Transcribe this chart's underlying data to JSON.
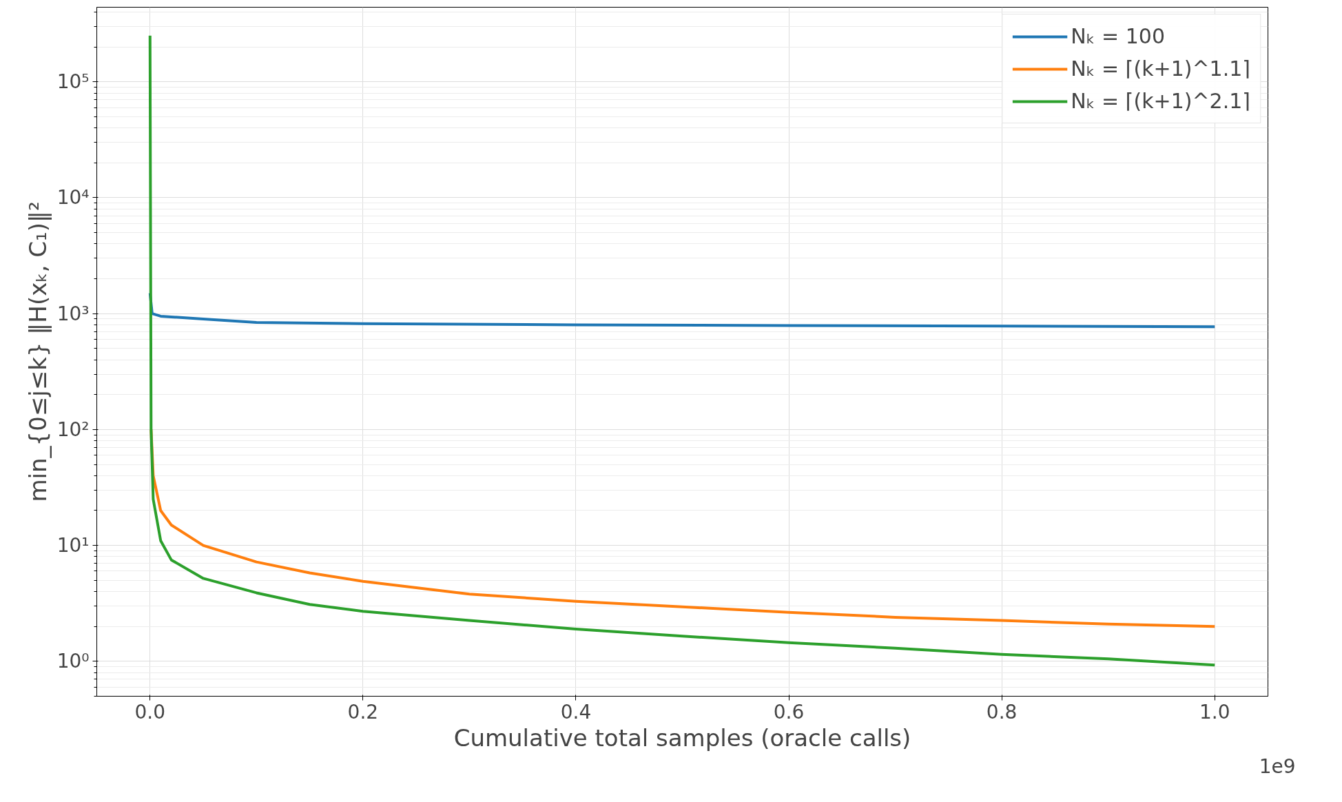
{
  "chart_data": {
    "type": "line",
    "xlabel": "Cumulative total samples (oracle calls)",
    "ylabel": "min_{0≤j≤k} ‖H(xₖ, C₁)‖²",
    "log": "y",
    "grid": true,
    "legend": "top right",
    "line_style": "solid",
    "xlim": [
      -0.05,
      1.05
    ],
    "xticks": [
      {
        "value": 0,
        "label": "0.0"
      },
      0.2,
      0.4,
      0.6,
      0.8,
      {
        "value": 1,
        "label": "1.0"
      }
    ],
    "ylim": [
      0.5,
      440000
    ],
    "yticks": [
      {
        "value": 1,
        "label": "10⁰"
      },
      {
        "value": 10,
        "label": "10¹"
      },
      {
        "value": 100,
        "label": "10²"
      },
      {
        "value": 1000,
        "label": "10³"
      },
      {
        "value": 10000,
        "label": "10⁴"
      },
      {
        "value": 100000,
        "label": "10⁵"
      }
    ],
    "annotations": [
      "1e9"
    ],
    "series": [
      {
        "name": "Nₖ = 100",
        "color": "#1f77b4",
        "x": [
          0.0,
          0.002,
          0.01,
          0.05,
          0.1,
          0.2,
          0.4,
          0.6,
          0.8,
          1.0
        ],
        "values": [
          1500,
          1000,
          950,
          900,
          840,
          820,
          800,
          790,
          780,
          770
        ]
      },
      {
        "name": "Nₖ = ⌈(k+1)^1.1⌉",
        "color": "#ff7f0e",
        "x": [
          0.001,
          0.003,
          0.01,
          0.02,
          0.05,
          0.1,
          0.15,
          0.2,
          0.3,
          0.4,
          0.5,
          0.6,
          0.7,
          0.8,
          0.9,
          1.0
        ],
        "values": [
          100,
          40,
          20,
          15,
          10,
          7.2,
          5.8,
          4.9,
          3.8,
          3.3,
          2.95,
          2.65,
          2.4,
          2.25,
          2.1,
          2.0
        ]
      },
      {
        "name": "Nₖ = ⌈(k+1)^2.1⌉",
        "color": "#2ca02c",
        "x": [
          0.0,
          0.001,
          0.003,
          0.01,
          0.02,
          0.05,
          0.1,
          0.15,
          0.2,
          0.3,
          0.4,
          0.5,
          0.6,
          0.7,
          0.8,
          0.9,
          1.0
        ],
        "values": [
          250000,
          100,
          25,
          11,
          7.5,
          5.2,
          3.9,
          3.1,
          2.7,
          2.25,
          1.9,
          1.65,
          1.45,
          1.3,
          1.15,
          1.05,
          0.93
        ]
      }
    ]
  }
}
